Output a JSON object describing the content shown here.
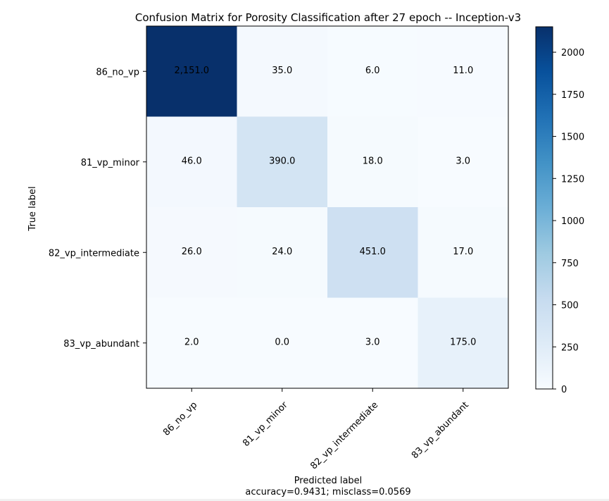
{
  "chart_data": {
    "type": "heatmap",
    "title": "Confusion Matrix for Porosity Classification after 27 epoch -- Inception-v3",
    "xlabel": "Predicted label",
    "ylabel": "True label",
    "x_categories": [
      "86_no_vp",
      "81_vp_minor",
      "82_vp_intermediate",
      "83_vp_abundant"
    ],
    "y_categories": [
      "86_no_vp",
      "81_vp_minor",
      "82_vp_intermediate",
      "83_vp_abundant"
    ],
    "matrix": [
      [
        2151,
        35,
        6,
        11
      ],
      [
        46,
        390,
        18,
        3
      ],
      [
        26,
        24,
        451,
        17
      ],
      [
        2,
        0,
        3,
        175
      ]
    ],
    "cell_labels": [
      [
        "2,151.0",
        "35.0",
        "6.0",
        "11.0"
      ],
      [
        "46.0",
        "390.0",
        "18.0",
        "3.0"
      ],
      [
        "26.0",
        "24.0",
        "451.0",
        "17.0"
      ],
      [
        "2.0",
        "0.0",
        "3.0",
        "175.0"
      ]
    ],
    "footer_text": "accuracy=0.9431; misclass=0.0569",
    "colorbar": {
      "min": 0,
      "max": 2151,
      "ticks": [
        0,
        250,
        500,
        750,
        1000,
        1250,
        1500,
        1750,
        2000
      ],
      "tick_labels": [
        "0",
        "250",
        "500",
        "750",
        "1000",
        "1250",
        "1500",
        "1750",
        "2000"
      ],
      "colormap": "Blues"
    },
    "colors": {
      "text_dark": "#000000",
      "text_light": "#ffffff",
      "low": "#f7fbff",
      "high": "#08306b"
    }
  }
}
